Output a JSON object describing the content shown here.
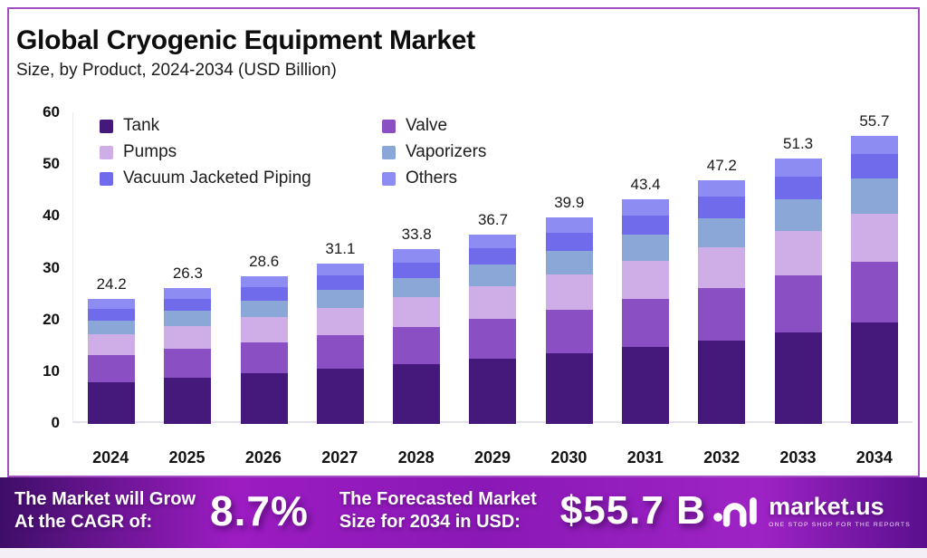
{
  "header": {
    "title": "Global Cryogenic Equipment Market",
    "subtitle": "Size, by Product, 2024-2034 (USD Billion)"
  },
  "chart_data": {
    "type": "bar",
    "stacked": true,
    "title": "Global Cryogenic Equipment Market Size, by Product, 2024-2034 (USD Billion)",
    "categories": [
      "2024",
      "2025",
      "2026",
      "2027",
      "2028",
      "2029",
      "2030",
      "2031",
      "2032",
      "2033",
      "2034"
    ],
    "totals": [
      24.2,
      26.3,
      28.6,
      31.1,
      33.8,
      36.7,
      39.9,
      43.4,
      47.2,
      51.3,
      55.7
    ],
    "series": [
      {
        "name": "Tank",
        "color": "#45187b",
        "values": [
          8.2,
          9.0,
          9.8,
          10.7,
          11.6,
          12.6,
          13.7,
          14.9,
          16.2,
          17.8,
          19.6
        ]
      },
      {
        "name": "Valve",
        "color": "#8a4fc3",
        "values": [
          5.2,
          5.6,
          6.1,
          6.6,
          7.2,
          7.8,
          8.5,
          9.3,
          10.1,
          11.0,
          11.8
        ]
      },
      {
        "name": "Pumps",
        "color": "#cfaee8",
        "values": [
          4.0,
          4.4,
          4.8,
          5.2,
          5.7,
          6.2,
          6.7,
          7.3,
          8.0,
          8.6,
          9.3
        ]
      },
      {
        "name": "Vaporizers",
        "color": "#8ba7d8",
        "values": [
          2.7,
          2.9,
          3.2,
          3.5,
          3.8,
          4.2,
          4.6,
          5.1,
          5.6,
          6.1,
          6.8
        ]
      },
      {
        "name": "Vacuum Jacketed Piping",
        "color": "#6f6bea",
        "values": [
          2.2,
          2.4,
          2.6,
          2.8,
          3.0,
          3.2,
          3.5,
          3.8,
          4.1,
          4.4,
          4.7
        ]
      },
      {
        "name": "Others",
        "color": "#8d8cf2",
        "values": [
          1.9,
          2.0,
          2.1,
          2.3,
          2.5,
          2.7,
          2.9,
          3.0,
          3.2,
          3.4,
          3.5
        ]
      }
    ],
    "ylim": [
      0,
      60
    ],
    "yticks": [
      0,
      10,
      20,
      30,
      40,
      50,
      60
    ],
    "xlabel": "",
    "ylabel": "",
    "grid": false,
    "legend_position": "top-left"
  },
  "footer": {
    "cagr_label_line1": "The Market will Grow",
    "cagr_label_line2": "At the CAGR of:",
    "cagr_value": "8.7%",
    "forecast_label_line1": "The Forecasted Market",
    "forecast_label_line2": "Size for 2034 in USD:",
    "forecast_value": "$55.7 B",
    "brand_name": "market.us",
    "brand_tagline": "ONE STOP SHOP FOR THE REPORTS"
  },
  "colors": {
    "card_border": "#a44fc2",
    "banner_gradient_start": "#3f0e68",
    "banner_gradient_mid": "#9c1cc2",
    "banner_gradient_end": "#5a0f8e",
    "bottom_strip": "#f4eff7"
  }
}
